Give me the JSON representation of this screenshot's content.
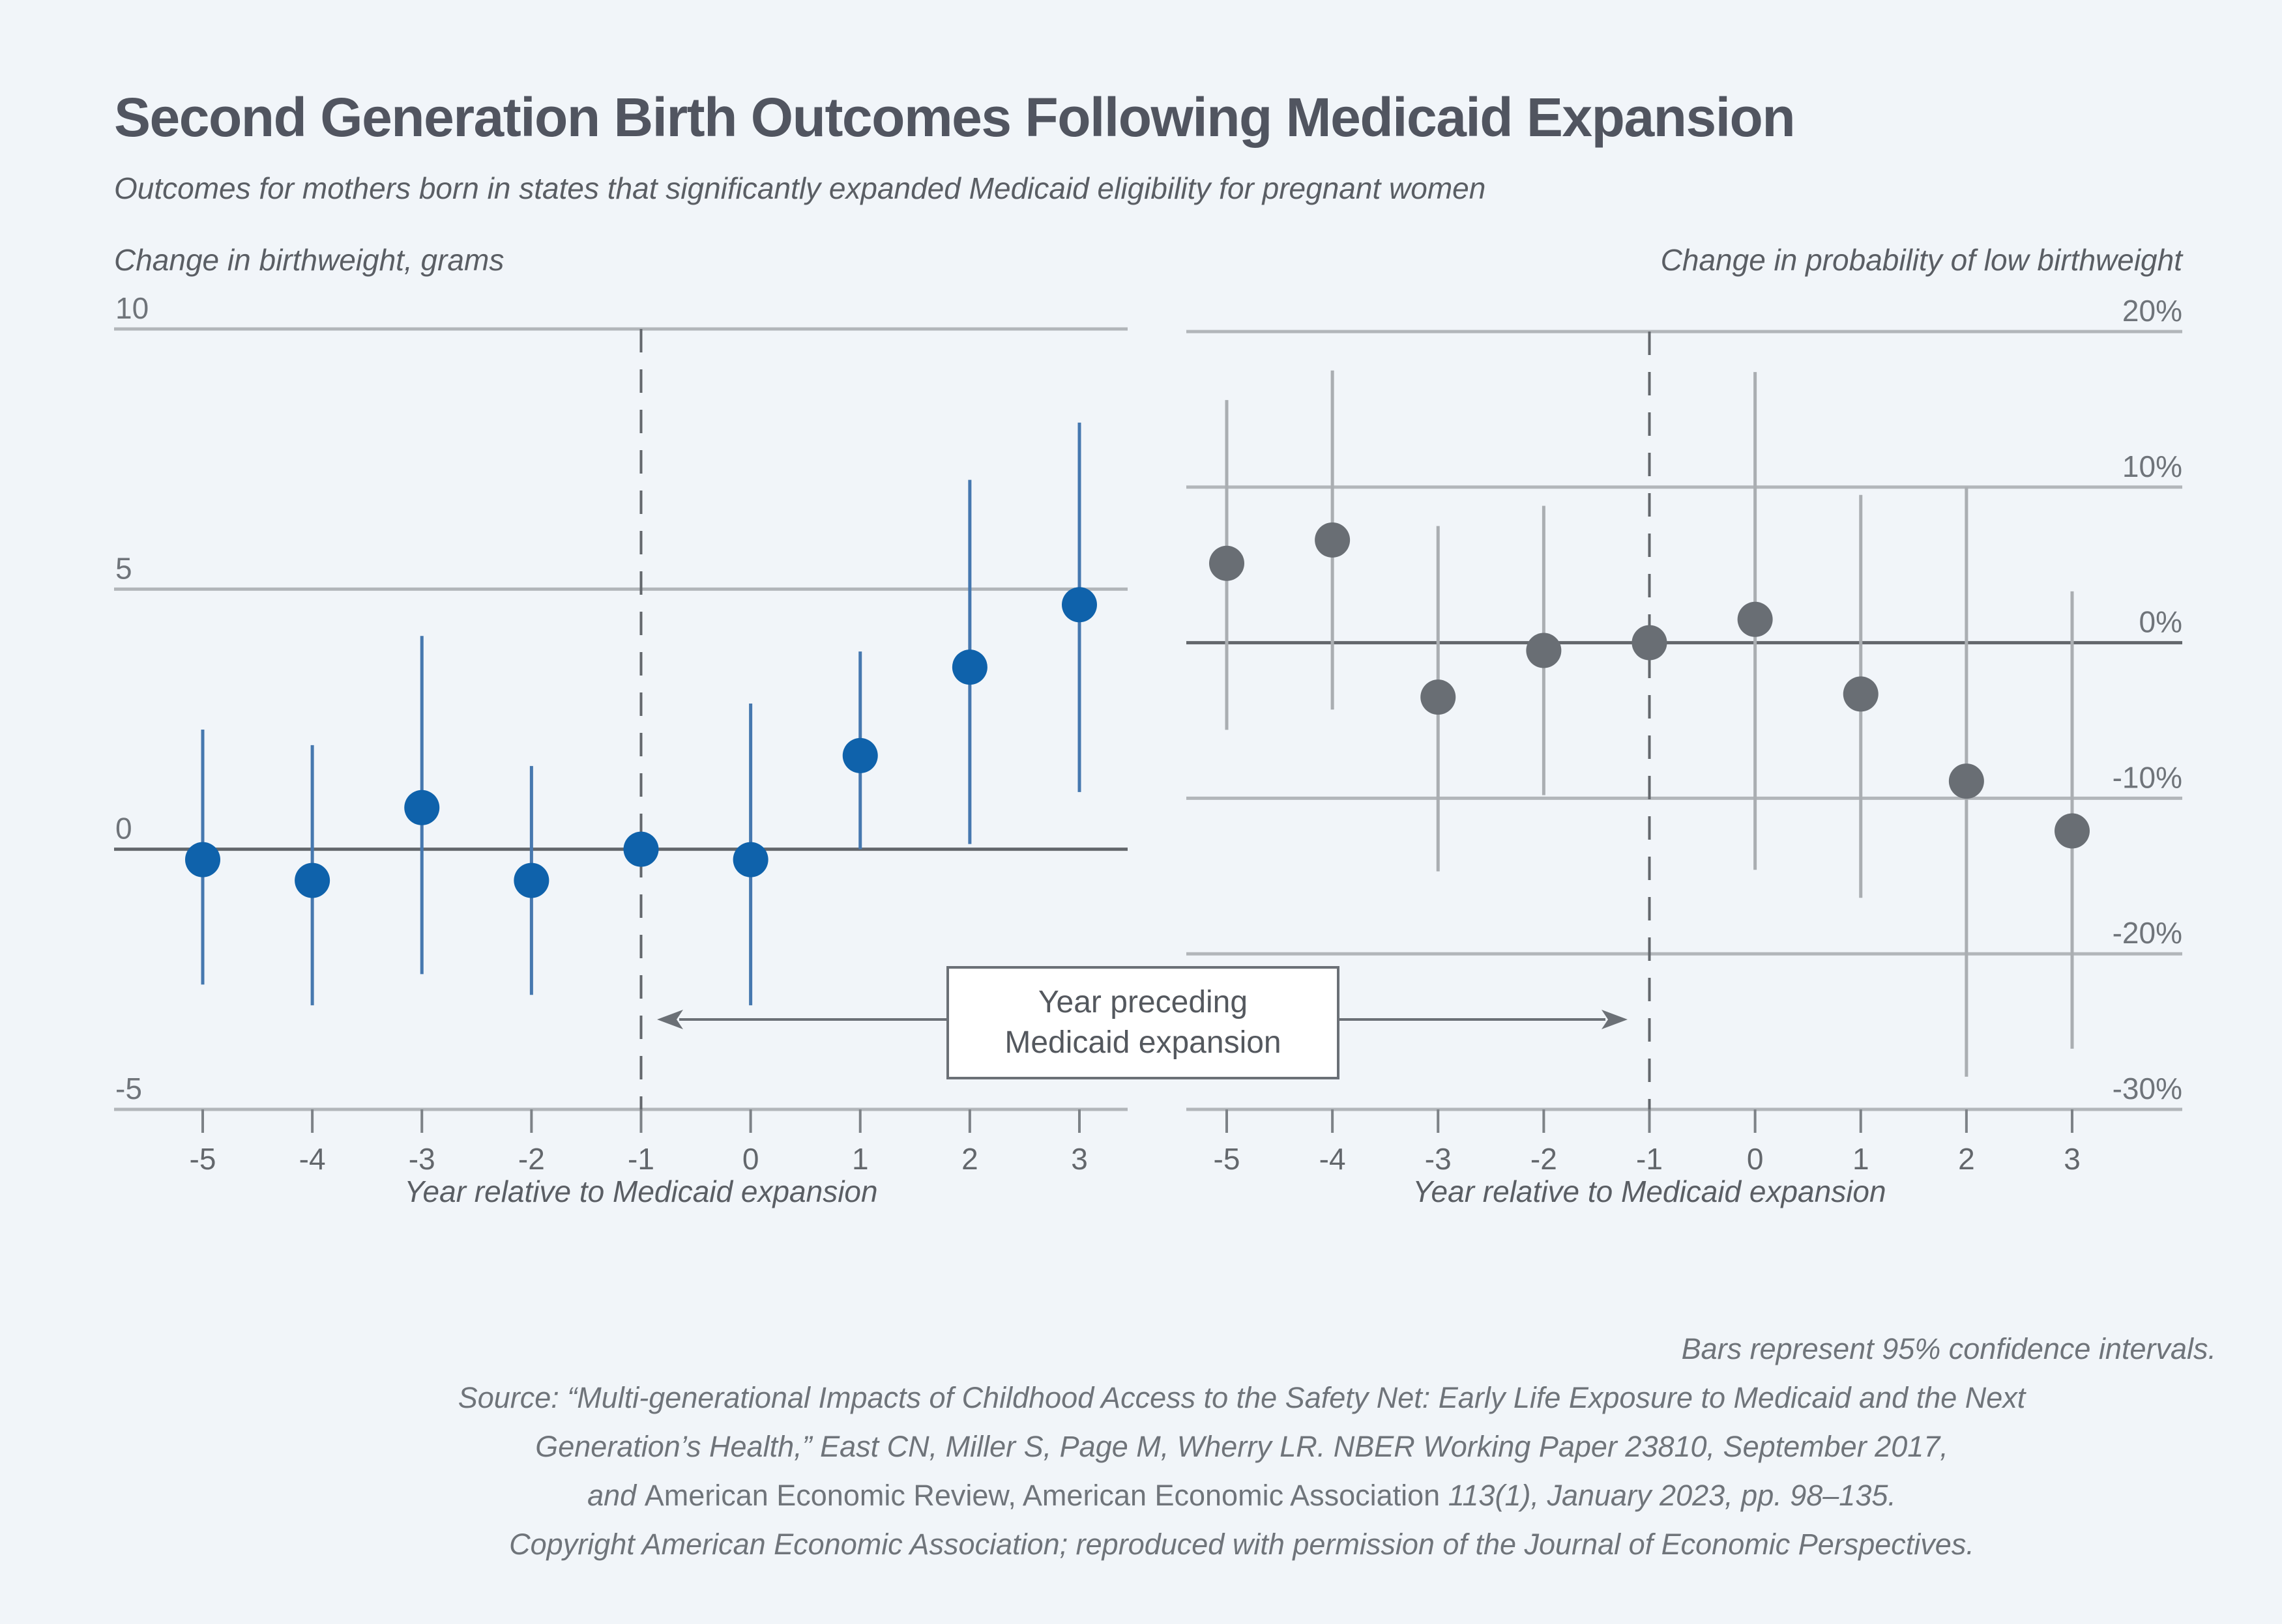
{
  "page": {
    "title": "Second Generation Birth Outcomes Following Medicaid Expansion",
    "subtitle": "Outcomes for mothers born in states that significantly expanded Medicaid eligibility for pregnant women"
  },
  "annotation": {
    "line1": "Year preceding",
    "line2": "Medicaid expansion"
  },
  "footnote": {
    "note": "Bars represent 95% confidence intervals.",
    "source_line1": "Source: “Multi-generational Impacts of Childhood Access to the Safety Net: Early Life Exposure to Medicaid and the Next",
    "source_line2": "Generation’s Health,” East CN, Miller S, Page M, Wherry LR. NBER Working Paper 23810, September 2017,",
    "source_line3_parts": {
      "italic1": "and ",
      "normal": "American Economic Review, American Economic Association ",
      "italic2": "113(1), January 2023, pp. 98–135."
    },
    "source_line4": "Copyright American Economic Association; reproduced with permission of the Journal of Economic Perspectives."
  },
  "colors": {
    "background": "#f1f5f9",
    "grid": "#b2b6ba",
    "axis_dark": "#63676c",
    "tick": "#7d8287",
    "tick_label": "#63676c",
    "y_label": "#6f747a",
    "arrow": "#6b7076",
    "left_point": "#0f62ab",
    "left_ci": "#4678af",
    "right_point": "#696e74",
    "right_ci": "#aaaeb2"
  },
  "chart_data": [
    {
      "type": "scatter",
      "panel": "left",
      "title": "Change in birthweight, grams",
      "xlabel": "Year relative to Medicaid expansion",
      "x": [
        -5,
        -4,
        -3,
        -2,
        -1,
        0,
        1,
        2,
        3
      ],
      "values": [
        -0.2,
        -0.6,
        0.8,
        -0.6,
        0,
        -0.2,
        1.8,
        3.5,
        4.7
      ],
      "ci_low": [
        -2.6,
        -3.0,
        -2.4,
        -2.8,
        null,
        -3.0,
        0.0,
        0.1,
        1.1
      ],
      "ci_high": [
        2.3,
        2.0,
        4.1,
        1.6,
        null,
        2.8,
        3.8,
        7.1,
        8.2
      ],
      "ylim": [
        -5,
        10
      ],
      "yticks": [
        10,
        5,
        0,
        -5
      ],
      "ytick_labels": [
        "10",
        "5",
        "0",
        "-5"
      ],
      "zero_line": 0,
      "reference_x": -1,
      "grid": true,
      "legend": "none"
    },
    {
      "type": "scatter",
      "panel": "right",
      "title": "Change in probability of low birthweight",
      "xlabel": "Year relative to Medicaid expansion",
      "x": [
        -5,
        -4,
        -3,
        -2,
        -1,
        0,
        1,
        2,
        3
      ],
      "values": [
        5.1,
        6.6,
        -3.5,
        -0.5,
        0,
        1.5,
        -3.3,
        -8.9,
        -12.1
      ],
      "ci_low": [
        -5.6,
        -4.3,
        -14.7,
        -9.8,
        null,
        -14.6,
        -16.4,
        -27.9,
        -26.1
      ],
      "ci_high": [
        15.6,
        17.5,
        7.5,
        8.8,
        null,
        17.4,
        9.5,
        10.0,
        3.3
      ],
      "ylim": [
        -30,
        20
      ],
      "yticks": [
        20,
        10,
        0,
        -10,
        -20,
        -30
      ],
      "ytick_labels": [
        "20%",
        "10%",
        "0%",
        "-10%",
        "-20%",
        "-30%"
      ],
      "zero_line": 0,
      "reference_x": -1,
      "grid": true,
      "legend": "none"
    }
  ]
}
